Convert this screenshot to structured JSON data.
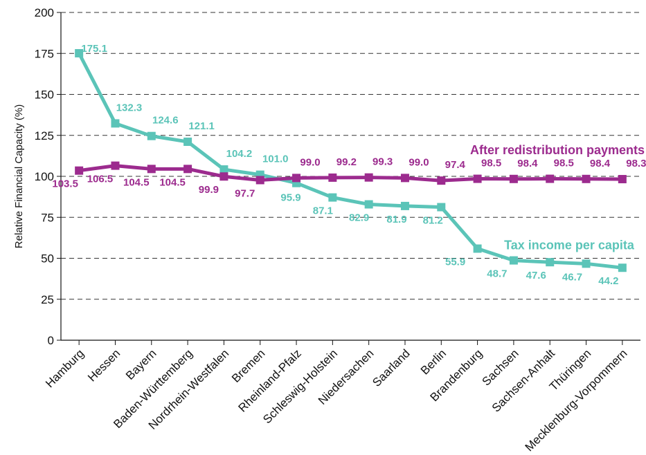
{
  "chart_data": {
    "type": "line",
    "title": "",
    "xlabel": "",
    "ylabel": "Relative Financial Capacity (%)",
    "ylim": [
      0,
      200
    ],
    "yticks": [
      0,
      25,
      50,
      75,
      100,
      125,
      150,
      175,
      200
    ],
    "grid": "horizontal dashed",
    "categories": [
      "Hamburg",
      "Hessen",
      "Bayern",
      "Baden-Württemberg",
      "Nordrhein-Westfalen",
      "Bremen",
      "Rheinland-Pfalz",
      "Schleswig-Holstein",
      "Niedersachen",
      "Saarland",
      "Berlin",
      "Brandenburg",
      "Sachsen",
      "Sachsen-Anhalt",
      "Thüringen",
      "Mecklenburg-Vorpommern"
    ],
    "series": [
      {
        "name": "Tax income per capita",
        "color": "#5bc4b8",
        "values": [
          175.1,
          132.3,
          124.6,
          121.1,
          104.2,
          101.0,
          95.9,
          87.1,
          82.9,
          81.9,
          81.2,
          55.9,
          48.7,
          47.6,
          46.7,
          44.2
        ],
        "labels": [
          "175.1",
          "132.3",
          "124.6",
          "121.1",
          "104.2",
          "101.0",
          "95.9",
          "87.1",
          "82.9",
          "81.9",
          "81.2",
          "55.9",
          "48.7",
          "47.6",
          "46.7",
          "44.2"
        ]
      },
      {
        "name": "After redistribution payments",
        "color": "#9c2b8e",
        "values": [
          103.5,
          106.5,
          104.5,
          104.5,
          99.9,
          97.7,
          99.0,
          99.2,
          99.3,
          99.0,
          97.4,
          98.5,
          98.4,
          98.5,
          98.4,
          98.3
        ],
        "labels": [
          "103.5",
          "106.5",
          "104.5",
          "104.5",
          "99.9",
          "97.7",
          "99.0",
          "99.2",
          "99.3",
          "99.0",
          "97.4",
          "98.5",
          "98.4",
          "98.5",
          "98.4",
          "98.3"
        ]
      }
    ]
  }
}
